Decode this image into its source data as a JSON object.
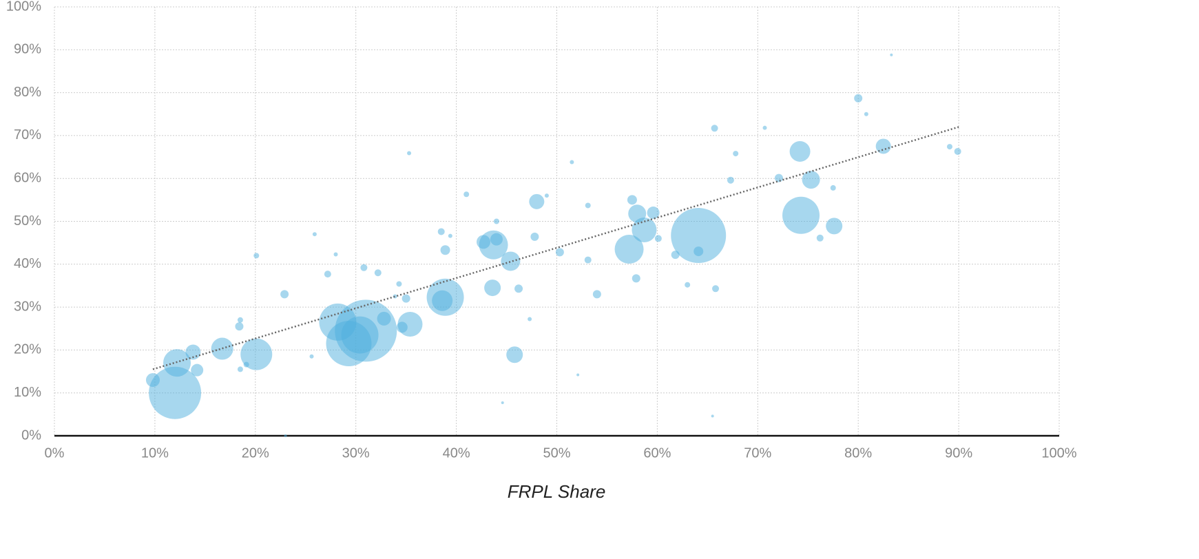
{
  "chart_data": {
    "type": "scatter",
    "x_label": "FRPL Share",
    "xlim": [
      0,
      100
    ],
    "ylim": [
      0,
      100
    ],
    "xticks": [
      {
        "value": 0,
        "label": "0%"
      },
      {
        "value": 10,
        "label": "10%"
      },
      {
        "value": 20,
        "label": "20%"
      },
      {
        "value": 30,
        "label": "30%"
      },
      {
        "value": 40,
        "label": "40%"
      },
      {
        "value": 50,
        "label": "50%"
      },
      {
        "value": 60,
        "label": "60%"
      },
      {
        "value": 70,
        "label": "70%"
      },
      {
        "value": 80,
        "label": "80%"
      },
      {
        "value": 90,
        "label": "90%"
      },
      {
        "value": 100,
        "label": "100%"
      }
    ],
    "yticks": [
      {
        "value": 0,
        "label": "0%"
      },
      {
        "value": 10,
        "label": "10%"
      },
      {
        "value": 20,
        "label": "20%"
      },
      {
        "value": 30,
        "label": "30%"
      },
      {
        "value": 40,
        "label": "40%"
      },
      {
        "value": 50,
        "label": "50%"
      },
      {
        "value": 60,
        "label": "60%"
      },
      {
        "value": 70,
        "label": "70%"
      },
      {
        "value": 80,
        "label": "80%"
      },
      {
        "value": 90,
        "label": "90%"
      },
      {
        "value": 100,
        "label": "100%"
      }
    ],
    "grid": true,
    "series": [
      {
        "color": "#4fb0dd",
        "x": [
          12,
          12.2,
          9.8,
          13.8,
          14.2,
          16.7,
          20.1,
          18.4,
          18.5,
          20.1,
          22.9,
          25.9,
          27.2,
          28.2,
          29.3,
          31,
          30.4,
          32.8,
          35.4,
          34.6,
          30.8,
          32.2,
          33.9,
          35,
          34.3,
          35.3,
          38.9,
          38.6,
          38.9,
          38.5,
          39.4,
          41,
          43.7,
          42.7,
          44,
          43.6,
          45.4,
          45.8,
          46.2,
          44,
          47.8,
          48,
          47.3,
          49,
          50.3,
          51.5,
          53.1,
          53.1,
          54,
          57.2,
          58.7,
          58,
          57.5,
          59.6,
          57.9,
          60.1,
          61.8,
          64.1,
          64.1,
          63,
          65.8,
          65.7,
          67.3,
          67.8,
          70.7,
          72.1,
          74.2,
          74.3,
          75.3,
          77.6,
          76.2,
          77.5,
          80,
          80.8,
          82.5,
          89.1,
          89.9,
          83.3,
          44.6,
          65.5,
          52.1,
          23,
          25.6,
          18.5,
          19.1,
          28
        ],
        "values": [
          10,
          17,
          13,
          19.5,
          15.3,
          20.3,
          19,
          25.5,
          27,
          42,
          33,
          47,
          37.7,
          26.5,
          21.5,
          24.5,
          23.5,
          27.3,
          26,
          25.3,
          39.2,
          38,
          32.5,
          32,
          35.4,
          65.9,
          32.3,
          31.5,
          43.3,
          47.6,
          46.6,
          56.3,
          44.5,
          45.2,
          45.8,
          34.5,
          40.7,
          18.9,
          34.3,
          50,
          46.4,
          54.6,
          27.2,
          56,
          42.8,
          63.8,
          53.7,
          41,
          33,
          43.5,
          48,
          51.8,
          55,
          52,
          36.7,
          46,
          42.2,
          46.7,
          43,
          35.2,
          34.3,
          71.7,
          59.6,
          65.8,
          71.8,
          60.1,
          66.3,
          51.4,
          59.7,
          48.9,
          46.1,
          57.8,
          78.7,
          75,
          67.5,
          67.4,
          66.3,
          88.8,
          7.7,
          4.6,
          14.2,
          0,
          18.5,
          15.5,
          16.6,
          42.3
        ],
        "sizes": [
          1444,
          400,
          100,
          121,
          81,
          256,
          529,
          36,
          16,
          16,
          36,
          9,
          25,
          729,
          1089,
          2025,
          729,
          100,
          324,
          64,
          25,
          25,
          9,
          36,
          16,
          9,
          729,
          225,
          49,
          25,
          9,
          16,
          441,
          100,
          81,
          144,
          196,
          144,
          36,
          16,
          36,
          121,
          9,
          9,
          36,
          9,
          16,
          25,
          36,
          441,
          324,
          169,
          49,
          81,
          36,
          25,
          36,
          1600,
          49,
          16,
          25,
          25,
          25,
          16,
          9,
          36,
          225,
          729,
          169,
          144,
          25,
          16,
          36,
          9,
          121,
          16,
          25,
          4,
          4,
          4,
          4,
          4,
          9,
          16,
          16,
          9
        ]
      }
    ],
    "trendline": {
      "color": "#666666",
      "x": [
        9.8,
        90
      ],
      "values": [
        15.5,
        72
      ]
    }
  }
}
